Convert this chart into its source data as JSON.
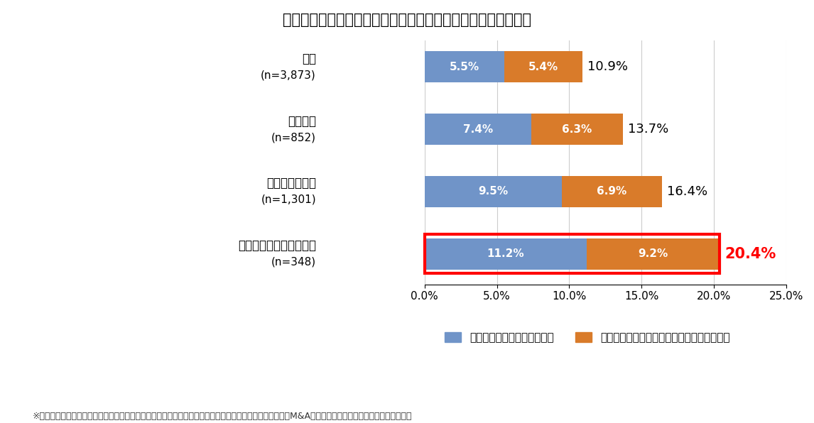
{
  "title": "【事業承継の手段としてのＭ＆Ａ（譲渡・売却）の検討状況】",
  "categories_line1": [
    "全体",
    "赤字企業",
    "後継者不在企業",
    "赤字かつ後継者不在企業"
  ],
  "categories_line2": [
    "(n=3,873)",
    "(n=852)",
    "(n=1,301)",
    "(n=348)"
  ],
  "blue_values": [
    5.5,
    7.4,
    9.5,
    11.2
  ],
  "orange_values": [
    5.4,
    6.3,
    6.9,
    9.2
  ],
  "totals": [
    "10.9%",
    "13.7%",
    "16.4%",
    "20.4%"
  ],
  "blue_color": "#7094C8",
  "orange_color": "#D97B2A",
  "highlight_row": 3,
  "highlight_color": "#FF0000",
  "total_color_normal": "#000000",
  "total_color_highlight": "#FF0000",
  "xlim": [
    0,
    25
  ],
  "xticks": [
    0,
    5,
    10,
    15,
    20,
    25
  ],
  "xtick_labels": [
    "0.0%",
    "5.0%",
    "10.0%",
    "15.0%",
    "20.0%",
    "25.0%"
  ],
  "legend_blue": "（現在）譲渡を検討している",
  "legend_orange": "（過去に）検討したが譲渡まで至らなかった",
  "footnote": "※「後継者不在企業」は、「後継者を決めていないが、事業は継続したい」「自分の代で廃業する予定」「M&A等で会社を譲渡する予定」と回答した企業",
  "bar_height": 0.5,
  "title_fontsize": 15,
  "tick_fontsize": 11,
  "bar_label_fontsize": 11,
  "total_fontsize": 13,
  "total_fontsize_highlight": 15,
  "legend_fontsize": 11,
  "footnote_fontsize": 9,
  "cat_fontsize": 12,
  "background_color": "#FFFFFF"
}
